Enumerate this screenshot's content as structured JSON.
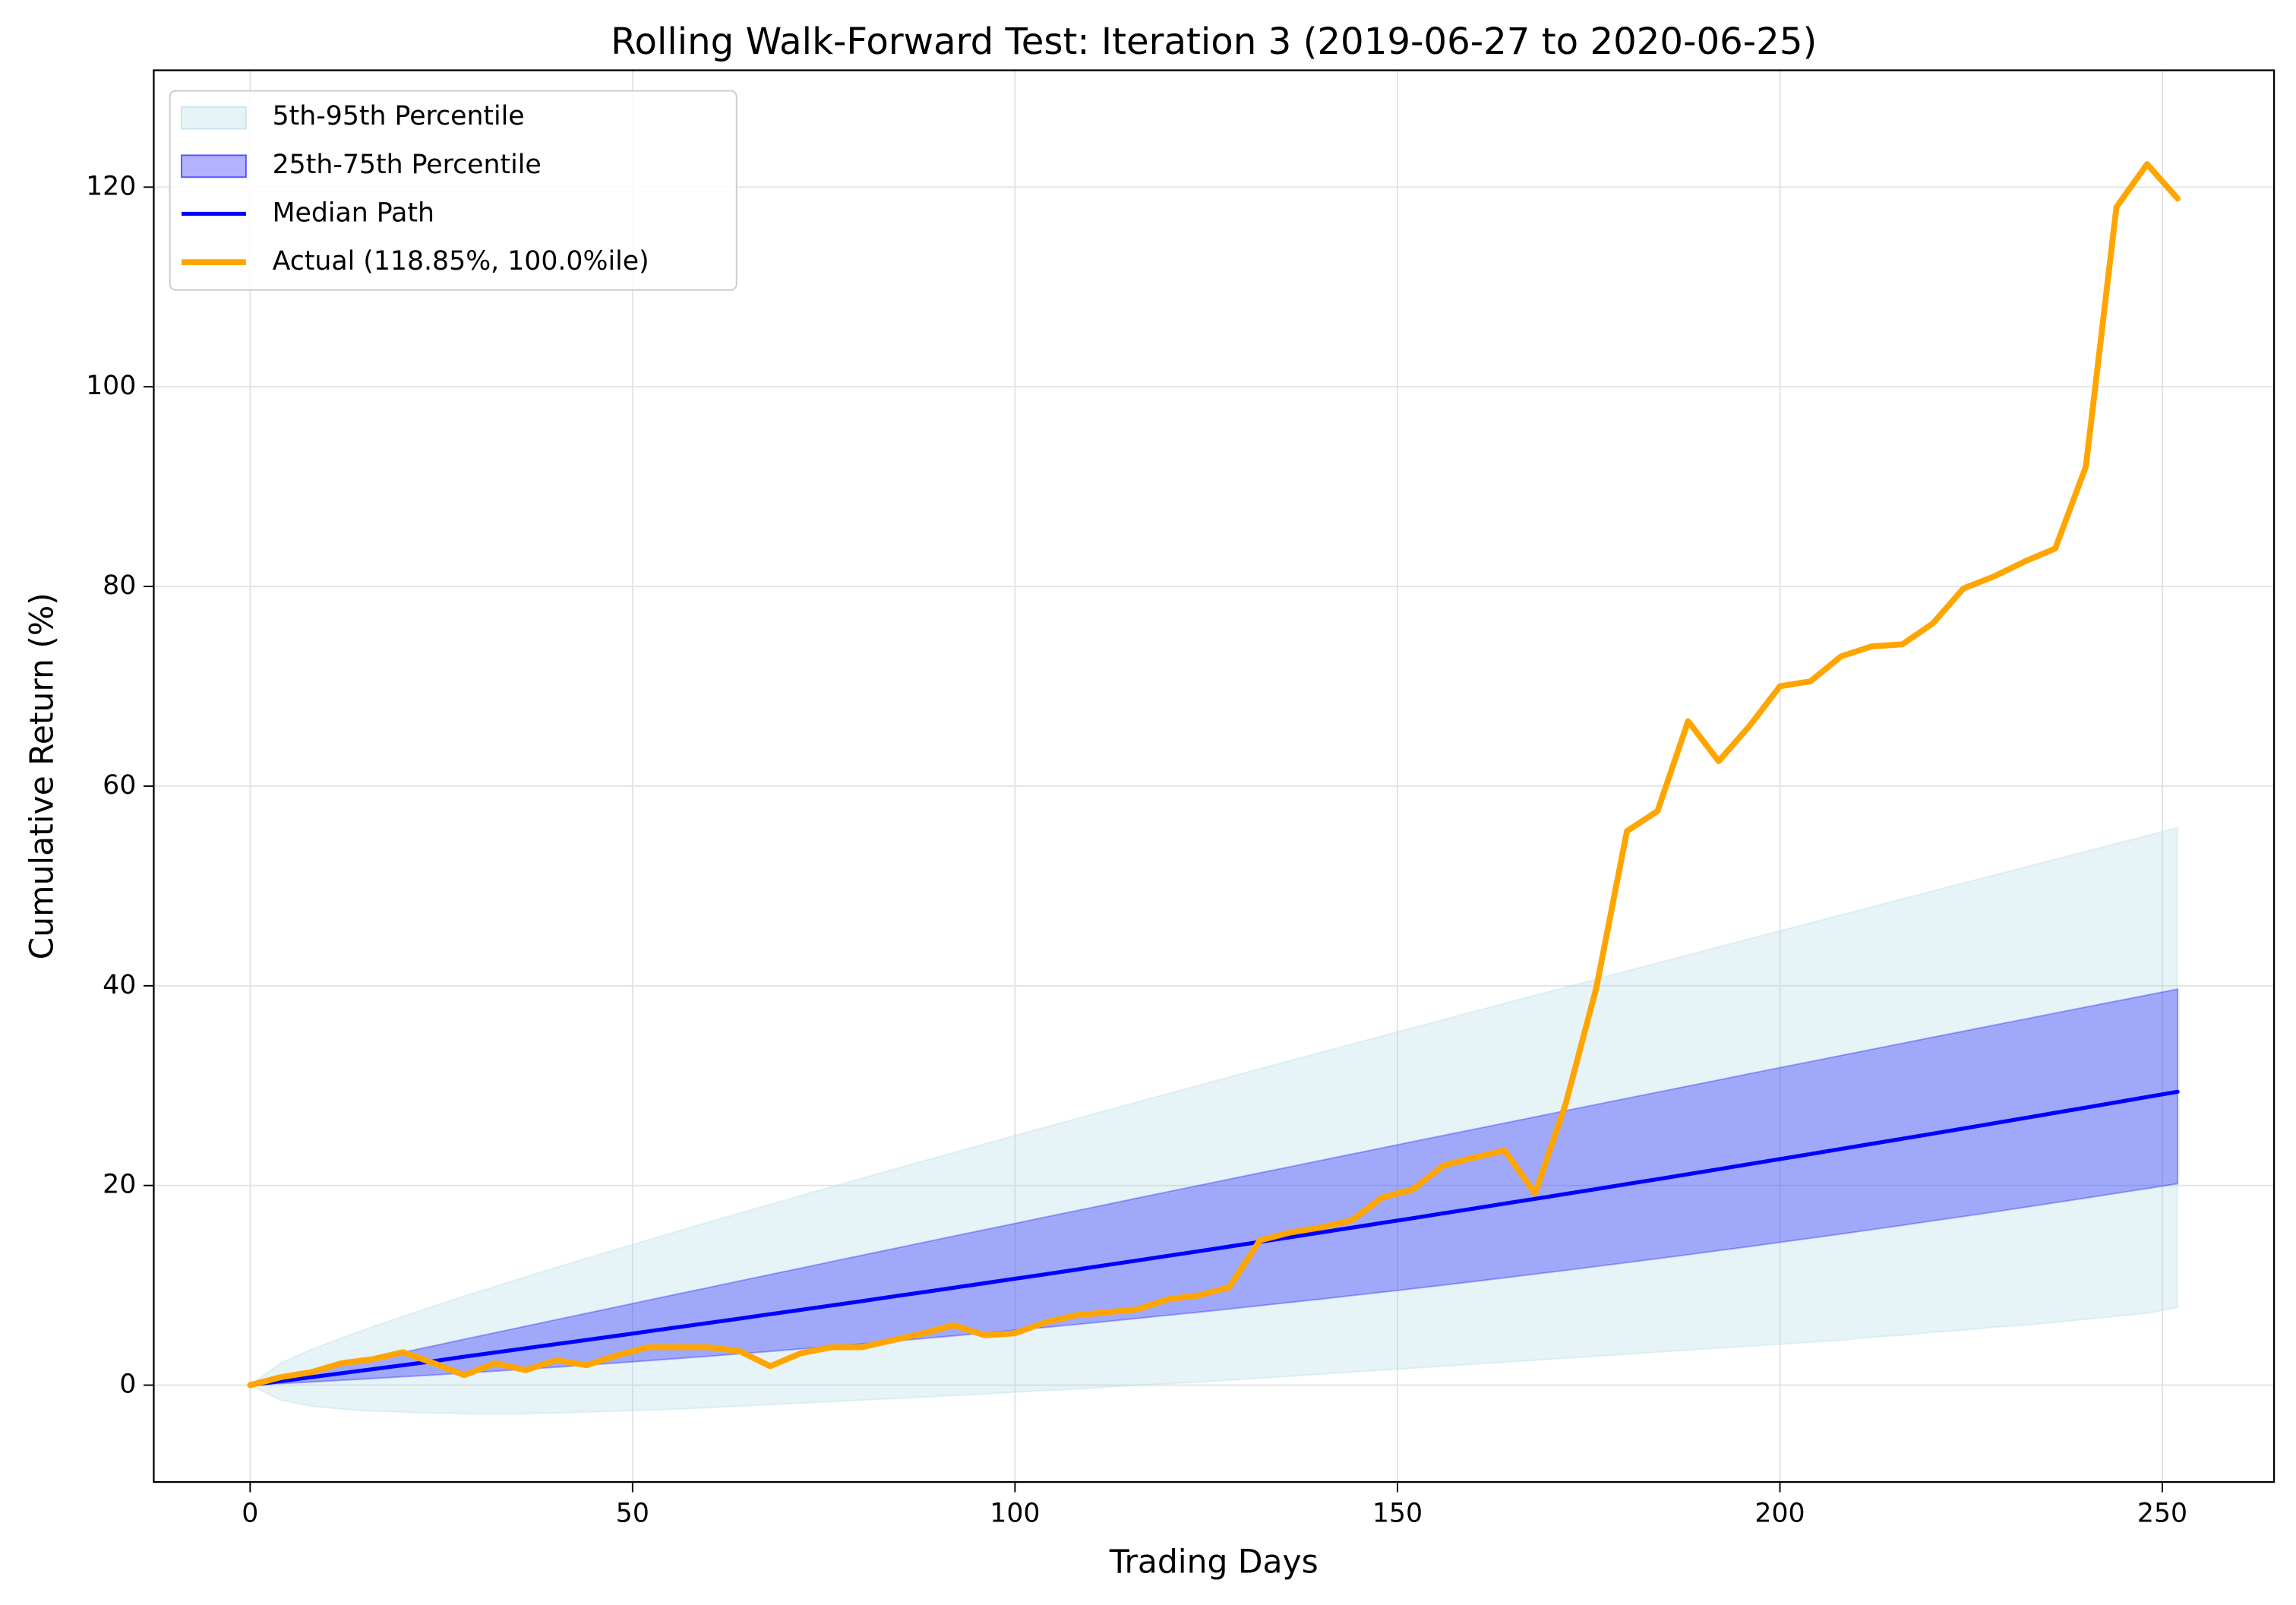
{
  "chart_data": {
    "type": "line",
    "title": "Rolling Walk-Forward Test: Iteration 3 (2019-06-27 to 2020-06-25)",
    "x_label": "Trading Days",
    "y_label": "Cumulative Return (%)",
    "xlim": [
      -12.6,
      264.6
    ],
    "ylim": [
      -9.7,
      131.7
    ],
    "xticks": [
      0,
      50,
      100,
      150,
      200,
      250
    ],
    "yticks": [
      0,
      20,
      40,
      60,
      80,
      100,
      120
    ],
    "grid": true,
    "legend": "upper left",
    "x": [
      0,
      4,
      8,
      12,
      16,
      20,
      24,
      28,
      32,
      36,
      40,
      44,
      48,
      52,
      56,
      60,
      64,
      68,
      72,
      76,
      80,
      84,
      88,
      92,
      96,
      100,
      104,
      108,
      112,
      116,
      120,
      124,
      128,
      132,
      136,
      140,
      144,
      148,
      152,
      156,
      160,
      164,
      168,
      172,
      176,
      180,
      184,
      188,
      192,
      196,
      200,
      204,
      208,
      212,
      216,
      220,
      224,
      228,
      232,
      236,
      240,
      244,
      248,
      252
    ],
    "bands": [
      {
        "name": "5th-95th Percentile",
        "color": "#add8e6",
        "alpha": 0.3,
        "lower": [
          0,
          -1.5,
          -2.1,
          -2.4,
          -2.6,
          -2.7,
          -2.8,
          -2.85,
          -2.9,
          -2.85,
          -2.8,
          -2.7,
          -2.6,
          -2.5,
          -2.4,
          -2.25,
          -2.1,
          -1.95,
          -1.8,
          -1.65,
          -1.5,
          -1.35,
          -1.2,
          -1.05,
          -0.9,
          -0.7,
          -0.55,
          -0.4,
          -0.2,
          0,
          0.15,
          0.3,
          0.5,
          0.7,
          0.9,
          1.1,
          1.3,
          1.5,
          1.7,
          1.9,
          2.1,
          2.3,
          2.5,
          2.7,
          2.9,
          3.1,
          3.3,
          3.5,
          3.7,
          3.9,
          4.1,
          4.3,
          4.5,
          4.8,
          5.0,
          5.3,
          5.5,
          5.8,
          6.0,
          6.3,
          6.6,
          6.9,
          7.2,
          7.8
        ],
        "upper": [
          0,
          2.23,
          3.56,
          4.74,
          5.84,
          6.9,
          7.92,
          8.91,
          9.89,
          10.84,
          11.79,
          12.72,
          13.63,
          14.54,
          15.45,
          16.34,
          17.23,
          18.11,
          18.99,
          19.86,
          20.73,
          21.59,
          22.45,
          23.3,
          24.15,
          25.0,
          25.85,
          26.69,
          27.53,
          28.36,
          29.2,
          30.03,
          30.86,
          31.69,
          32.51,
          33.34,
          34.16,
          34.98,
          35.8,
          36.61,
          37.43,
          38.24,
          39.05,
          39.86,
          40.67,
          41.48,
          42.29,
          43.09,
          43.9,
          44.7,
          45.5,
          46.3,
          47.1,
          47.9,
          48.7,
          49.5,
          50.29,
          51.09,
          51.88,
          52.67,
          53.47,
          54.26,
          55.05,
          55.84
        ]
      },
      {
        "name": "25th-75th Percentile",
        "color": "#0000ff",
        "alpha": 0.3,
        "lower": [
          0,
          0.16,
          0.32,
          0.49,
          0.66,
          0.84,
          1.02,
          1.21,
          1.4,
          1.6,
          1.8,
          2.01,
          2.23,
          2.45,
          2.67,
          2.9,
          3.14,
          3.38,
          3.63,
          3.88,
          4.14,
          4.4,
          4.67,
          4.94,
          5.22,
          5.5,
          5.79,
          6.08,
          6.38,
          6.69,
          7.0,
          7.31,
          7.63,
          7.96,
          8.29,
          8.62,
          8.97,
          9.31,
          9.66,
          10.02,
          10.38,
          10.75,
          11.13,
          11.5,
          11.89,
          12.28,
          12.67,
          13.07,
          13.48,
          13.88,
          14.3,
          14.72,
          15.14,
          15.58,
          16.01,
          16.46,
          16.9,
          17.35,
          17.81,
          18.28,
          18.74,
          19.22,
          19.69,
          20.18
        ],
        "upper": [
          0,
          0.66,
          1.32,
          1.98,
          2.63,
          3.29,
          3.94,
          4.6,
          5.25,
          5.9,
          6.55,
          7.2,
          7.85,
          8.5,
          9.15,
          9.79,
          10.44,
          11.08,
          11.72,
          12.37,
          13.01,
          13.65,
          14.29,
          14.93,
          15.56,
          16.2,
          16.84,
          17.47,
          18.1,
          18.74,
          19.37,
          20.0,
          20.63,
          21.26,
          21.88,
          22.51,
          23.14,
          23.76,
          24.39,
          25.01,
          25.63,
          26.25,
          26.87,
          27.49,
          28.11,
          28.73,
          29.34,
          29.96,
          30.57,
          31.19,
          31.8,
          32.41,
          33.02,
          33.63,
          34.24,
          34.85,
          35.45,
          36.06,
          36.66,
          37.27,
          37.87,
          38.47,
          39.07,
          39.67
        ]
      }
    ],
    "series": [
      {
        "name": "Median Path",
        "color": "#0000ff",
        "width": 2,
        "values": [
          0,
          0.4,
          0.8,
          1.2,
          1.6,
          2.0,
          2.4,
          2.85,
          3.27,
          3.69,
          4.11,
          4.53,
          4.95,
          5.38,
          5.81,
          6.24,
          6.67,
          7.11,
          7.54,
          7.98,
          8.42,
          8.87,
          9.31,
          9.76,
          10.21,
          10.66,
          11.11,
          11.57,
          12.03,
          12.49,
          12.95,
          13.41,
          13.88,
          14.35,
          14.82,
          15.29,
          15.77,
          16.25,
          16.72,
          17.21,
          17.69,
          18.18,
          18.66,
          19.15,
          19.64,
          20.14,
          20.63,
          21.13,
          21.63,
          22.14,
          22.64,
          23.15,
          23.66,
          24.17,
          24.68,
          25.19,
          25.71,
          26.23,
          26.75,
          27.28,
          27.8,
          28.33,
          28.86,
          29.39
        ]
      },
      {
        "name": "Actual (118.85%, 100.0%ile)",
        "color": "#ffa500",
        "width": 3,
        "values": [
          0,
          0.8,
          1.3,
          2.2,
          2.6,
          3.3,
          2.2,
          1.0,
          2.2,
          1.5,
          2.5,
          2.0,
          3.0,
          3.8,
          3.8,
          3.8,
          3.4,
          1.9,
          3.2,
          3.8,
          3.8,
          4.5,
          5.2,
          6.0,
          5.0,
          5.2,
          6.3,
          7.0,
          7.3,
          7.6,
          8.6,
          9.0,
          9.8,
          14.5,
          15.3,
          15.8,
          16.5,
          18.8,
          19.6,
          22.0,
          22.8,
          23.5,
          19.2,
          28.2,
          39.8,
          55.5,
          57.5,
          66.5,
          62.5,
          66.0,
          70.0,
          70.5,
          73.0,
          74.0,
          74.2,
          76.3,
          79.8,
          81.0,
          82.5,
          83.8,
          92.0,
          118.0,
          122.3,
          118.85
        ]
      }
    ]
  }
}
